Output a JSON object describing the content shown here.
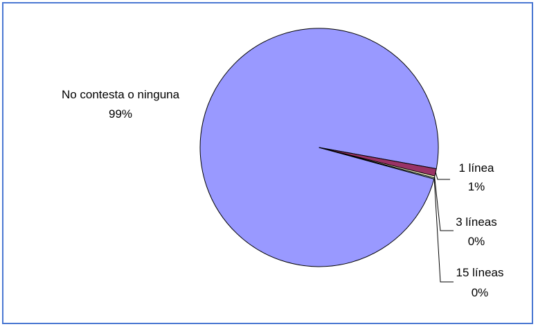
{
  "chart_data": {
    "type": "pie",
    "title": "",
    "slices": [
      {
        "label": "No contesta o ninguna",
        "value": 98.6,
        "percent_label": "99%",
        "color": "#9999ff"
      },
      {
        "label": "1 línea",
        "value": 1.0,
        "percent_label": "1%",
        "color": "#993366"
      },
      {
        "label": "3 líneas",
        "value": 0.25,
        "percent_label": "0%",
        "color": "#ffffcc"
      },
      {
        "label": "15 líneas",
        "value": 0.15,
        "percent_label": "0%",
        "color": "#ccffff"
      }
    ],
    "legend": "none",
    "data_labels": "category and percentage"
  },
  "colors": {
    "frame_border": "#4a78d2",
    "slice_stroke": "#000000"
  }
}
